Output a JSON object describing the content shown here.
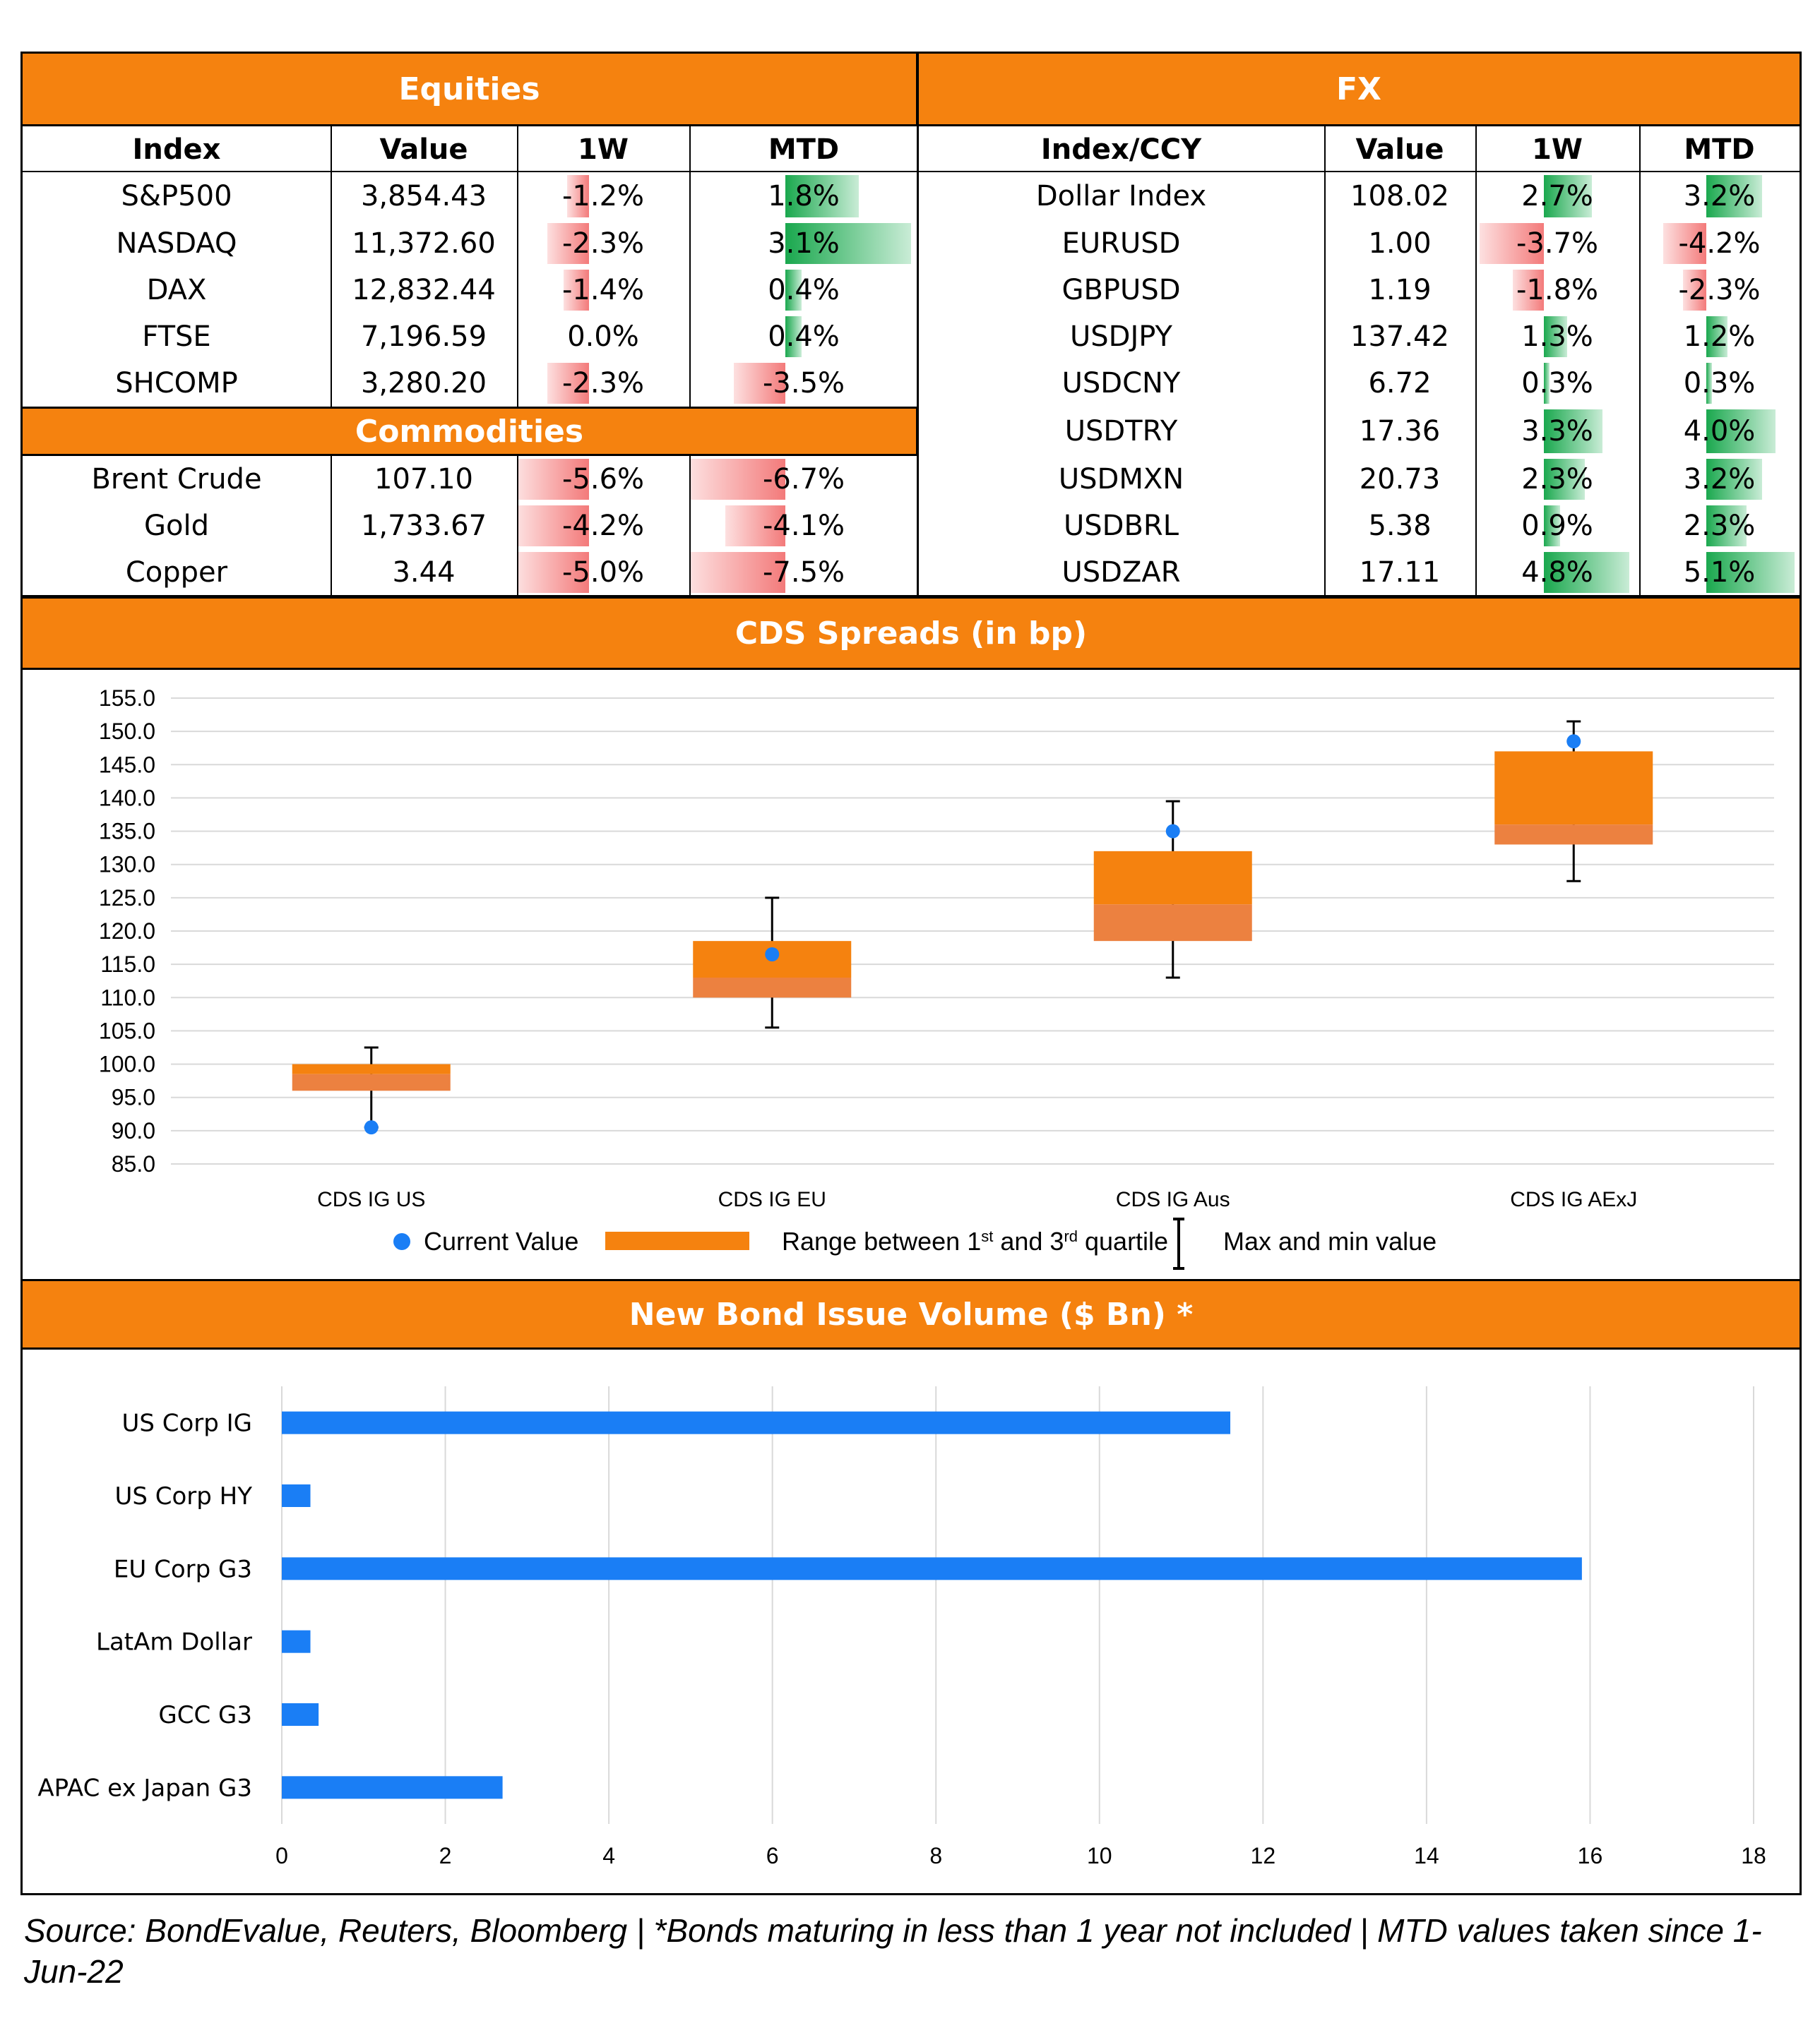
{
  "equities": {
    "title": "Equities",
    "headers": [
      "Index",
      "Value",
      "1W",
      "MTD"
    ],
    "rows": [
      {
        "name": "S&P500",
        "value": "3,854.43",
        "w1": "-1.2%",
        "mtd": "1.8%"
      },
      {
        "name": "NASDAQ",
        "value": "11,372.60",
        "w1": "-2.3%",
        "mtd": "3.1%"
      },
      {
        "name": "DAX",
        "value": "12,832.44",
        "w1": "-1.4%",
        "mtd": "0.4%"
      },
      {
        "name": "FTSE",
        "value": "7,196.59",
        "w1": "0.0%",
        "mtd": "0.4%"
      },
      {
        "name": "SHCOMP",
        "value": "3,280.20",
        "w1": "-2.3%",
        "mtd": "-3.5%"
      }
    ]
  },
  "commodities": {
    "title": "Commodities",
    "rows": [
      {
        "name": "Brent Crude",
        "value": "107.10",
        "w1": "-5.6%",
        "mtd": "-6.7%"
      },
      {
        "name": "Gold",
        "value": "1,733.67",
        "w1": "-4.2%",
        "mtd": "-4.1%"
      },
      {
        "name": "Copper",
        "value": "3.44",
        "w1": "-5.0%",
        "mtd": "-7.5%"
      }
    ]
  },
  "fx": {
    "title": "FX",
    "headers": [
      "Index/CCY",
      "Value",
      "1W",
      "MTD"
    ],
    "rows": [
      {
        "name": "Dollar Index",
        "value": "108.02",
        "w1": "2.7%",
        "mtd": "3.2%"
      },
      {
        "name": "EURUSD",
        "value": "1.00",
        "w1": "-3.7%",
        "mtd": "-4.2%"
      },
      {
        "name": "GBPUSD",
        "value": "1.19",
        "w1": "-1.8%",
        "mtd": "-2.3%"
      },
      {
        "name": "USDJPY",
        "value": "137.42",
        "w1": "1.3%",
        "mtd": "1.2%"
      },
      {
        "name": "USDCNY",
        "value": "6.72",
        "w1": "0.3%",
        "mtd": "0.3%"
      },
      {
        "name": "USDTRY",
        "value": "17.36",
        "w1": "3.3%",
        "mtd": "4.0%"
      },
      {
        "name": "USDMXN",
        "value": "20.73",
        "w1": "2.3%",
        "mtd": "3.2%"
      },
      {
        "name": "USDBRL",
        "value": "5.38",
        "w1": "0.9%",
        "mtd": "2.3%"
      },
      {
        "name": "USDZAR",
        "value": "17.11",
        "w1": "4.8%",
        "mtd": "5.1%"
      }
    ]
  },
  "colors": {
    "accent": "#f5820f",
    "pos_bar": "#1aa84e",
    "neg_bar": "#f37a7a",
    "series_blue": "#1a7ef5",
    "box_orange": "#f5820f"
  },
  "chart_data": [
    {
      "type": "box",
      "title": "CDS Spreads (in bp)",
      "categories": [
        "CDS IG US",
        "CDS IG EU",
        "CDS IG Aus",
        "CDS IG AExJ"
      ],
      "ylim": [
        85,
        155
      ],
      "yticks": [
        "85.0",
        "90.0",
        "95.0",
        "100.0",
        "105.0",
        "110.0",
        "115.0",
        "120.0",
        "125.0",
        "130.0",
        "135.0",
        "140.0",
        "145.0",
        "150.0",
        "155.0"
      ],
      "grid": true,
      "q1": [
        96.0,
        110.0,
        118.5,
        133.0
      ],
      "median": [
        98.5,
        113.0,
        124.0,
        136.0
      ],
      "q3": [
        100.0,
        118.5,
        132.0,
        147.0
      ],
      "min": [
        90.5,
        105.5,
        113.0,
        127.5
      ],
      "max": [
        102.5,
        125.0,
        139.5,
        151.5
      ],
      "current": [
        90.5,
        116.5,
        135.0,
        148.5
      ],
      "legend": {
        "current": "Current Value",
        "range_pre": "Range between 1",
        "range_sup1": "st",
        "range_mid": " and 3",
        "range_sup2": "rd",
        "range_post": " quartile",
        "maxmin": "Max and min value"
      }
    },
    {
      "type": "bar",
      "orientation": "horizontal",
      "title": "New Bond Issue Volume ($ Bn) *",
      "categories": [
        "US Corp IG",
        "US Corp HY",
        "EU Corp G3",
        "LatAm Dollar",
        "GCC G3",
        "APAC ex Japan G3"
      ],
      "values": [
        11.6,
        0.35,
        15.9,
        0.35,
        0.45,
        2.7
      ],
      "xlim": [
        0,
        18
      ],
      "xticks": [
        "0",
        "2",
        "4",
        "6",
        "8",
        "10",
        "12",
        "14",
        "16",
        "18"
      ],
      "grid": true
    }
  ],
  "source": "Source: BondEvalue, Reuters, Bloomberg | *Bonds maturing in less than 1 year not included | MTD values taken since 1-Jun-22"
}
